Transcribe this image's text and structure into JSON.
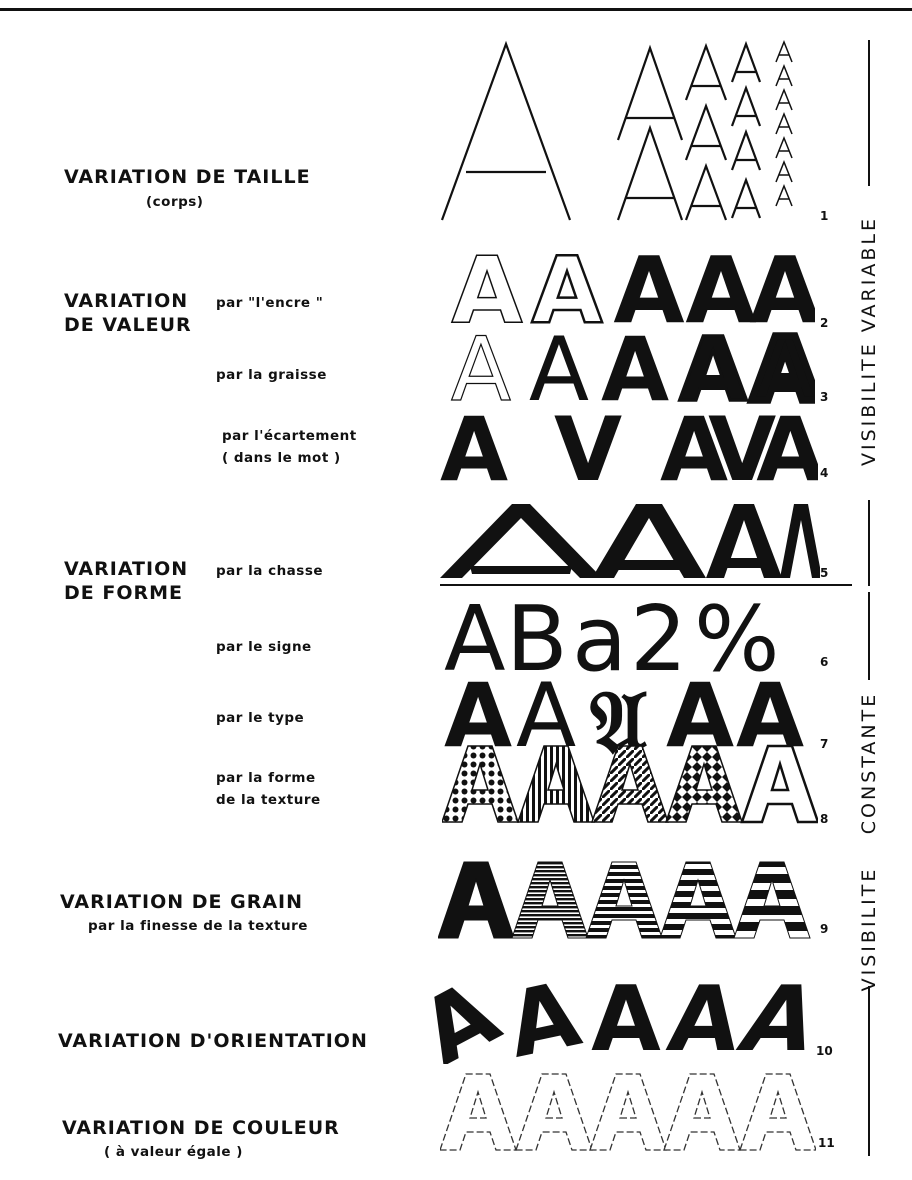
{
  "headings": {
    "taille": "VARIATION  DE  TAILLE",
    "taille_sub": "(corps)",
    "valeur_1": "VARIATION",
    "valeur_2": "DE  VALEUR",
    "forme_1": "VARIATION",
    "forme_2": "DE  FORME",
    "grain": "VARIATION  DE GRAIN",
    "grain_sub": "par la finesse de la texture",
    "orientation": "VARIATION D'ORIENTATION",
    "couleur": "VARIATION DE COULEUR",
    "couleur_sub": "( à  valeur  égale )"
  },
  "sublabels": {
    "encre": "par \"l'encre \"",
    "graisse": "par  la graisse",
    "ecartement_1": "par l'écartement",
    "ecartement_2": "( dans le mot )",
    "chasse": "par  la  chasse",
    "signe": "par  le  signe",
    "type": "par  le  type",
    "texture_1": "par  la  forme",
    "texture_2": "de  la  texture"
  },
  "row_numbers": [
    "1",
    "2",
    "3",
    "4",
    "5",
    "6",
    "7",
    "8",
    "9",
    "10",
    "11"
  ],
  "glyphs": {
    "letter": "A",
    "ecartement": [
      "A",
      "V",
      "AVA"
    ],
    "signe": [
      "A",
      "B",
      "a",
      "2",
      "%"
    ],
    "type_gothic": "𝔄"
  },
  "side_labels": {
    "variable": "VISIBILITE  VARIABLE",
    "constante": "CONSTANTE",
    "visibilite_2": "VISIBILITE"
  },
  "colors": {
    "ink": "#111111",
    "paper": "#ffffff"
  }
}
